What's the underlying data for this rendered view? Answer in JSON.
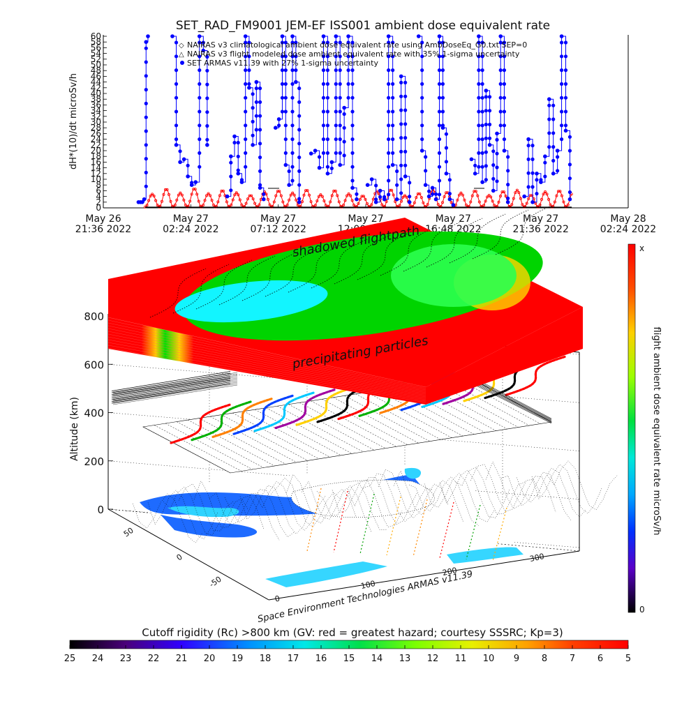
{
  "title": "SET_RAD_FM9001  JEM-EF ISS001 ambient dose equivalent rate",
  "chart_data": [
    {
      "type": "line",
      "ylabel": "dH*(10)/dt microSv/h",
      "xlabel": "",
      "ylim": [
        0,
        60
      ],
      "ytick_labels": [
        "0",
        "2",
        "4",
        "6",
        "8",
        "10",
        "12",
        "14",
        "16",
        "18",
        "20",
        "22",
        "24",
        "26",
        "28",
        "30",
        "32",
        "34",
        "36",
        "38",
        "40",
        "42",
        "44",
        "46",
        "48",
        "50",
        "52",
        "54",
        "56",
        "58",
        "60"
      ],
      "x_ticks": [
        {
          "date": "May 26",
          "time": "21:36 2022",
          "hours": 0
        },
        {
          "date": "May 27",
          "time": "02:24 2022",
          "hours": 4.8
        },
        {
          "date": "May 27",
          "time": "07:12 2022",
          "hours": 9.6
        },
        {
          "date": "May 27",
          "time": "12:00 2022",
          "hours": 14.4
        },
        {
          "date": "May 27",
          "time": "16:48 2022",
          "hours": 19.2
        },
        {
          "date": "May 27",
          "time": "21:36 2022",
          "hours": 24.0
        },
        {
          "date": "May 28",
          "time": "02:24 2022",
          "hours": 28.8
        }
      ],
      "xlim_hours": [
        0,
        28.8
      ],
      "legend": [
        "NAIRAS v3 climatological ambient dose equivalent rate using AmbDoseEq_G0.txt SEP=0",
        "NAIRAS v3 flight modeled dose ambient equivalent rate with 35% 1-sigma uncertainty",
        "SET ARMAS v11.39 with 27% 1-sigma uncertainty"
      ],
      "legend_placement": "top-center",
      "series": [
        {
          "name": "SET ARMAS v11.39 with 27% 1-sigma uncertainty",
          "color": "#0000ff",
          "segments": [
            {
              "x0": 1.93,
              "x1": 2.45,
              "values": [
                2,
                2,
                2,
                3,
                58,
                60
              ]
            },
            {
              "x0": 3.79,
              "x1": 5.7,
              "values": [
                60,
                22,
                16,
                17,
                11,
                8,
                9,
                60,
                55,
                22
              ]
            },
            {
              "x0": 6.8,
              "x1": 8.8,
              "values": [
                4,
                18,
                25,
                12,
                9,
                60,
                42,
                22,
                44,
                7,
                3
              ]
            },
            {
              "x0": 9.45,
              "x1": 10.75,
              "values": [
                28,
                31,
                60,
                15,
                8,
                60,
                44,
                2
              ]
            },
            {
              "x0": 11.4,
              "x1": 13.9,
              "values": [
                19,
                20,
                14,
                60,
                12,
                16,
                60,
                15,
                35,
                60,
                7,
                3
              ]
            },
            {
              "x0": 14.5,
              "x1": 16.8,
              "values": [
                8,
                10,
                2,
                6,
                3,
                60,
                15,
                3,
                46,
                11,
                2
              ]
            },
            {
              "x0": 17.3,
              "x1": 19.2,
              "values": [
                60,
                20,
                8,
                4,
                7,
                3,
                60,
                28,
                12,
                3,
                1
              ]
            },
            {
              "x0": 20.2,
              "x1": 22.2,
              "values": [
                17,
                12,
                60,
                9,
                41,
                22,
                6,
                26,
                60,
                20,
                2
              ]
            },
            {
              "x0": 23.1,
              "x1": 25.6,
              "values": [
                4,
                24,
                2,
                12,
                9,
                18,
                38,
                12,
                20,
                60,
                27,
                3
              ]
            }
          ]
        },
        {
          "name": "NAIRAS v3 climatological ambient dose equivalent rate using AmbDoseEq_G0.txt SEP=0",
          "color": "#ff0000",
          "start_hours": 2.3,
          "end_hours": 25.7,
          "period_hours": 0.77,
          "min_value": 0.3,
          "max_values": [
            4.8,
            6.6,
            5.2,
            6.8,
            5.0,
            6.1,
            5.3,
            4.4,
            5.6,
            6.0,
            5.2,
            6.3,
            4.6,
            6.1,
            4.9,
            4.2,
            5.8,
            6.4,
            4.3,
            5.1,
            6.3,
            5.5,
            5.2,
            6.0,
            4.4,
            5.8,
            6.2,
            4.5,
            5.6,
            6.0,
            5.6
          ]
        }
      ]
    },
    {
      "type": "heatmap",
      "ylabel": "Altitude (km)",
      "ytick_labels": [
        "0",
        "200",
        "400",
        "600",
        "800"
      ],
      "lat_tick_labels": [
        "-50",
        "0",
        "50"
      ],
      "lon_tick_labels": [
        "0",
        "100",
        "200",
        "300"
      ],
      "top_plane_labels": [
        "shadowed flightpath",
        "precipitating particles"
      ],
      "colorbar": {
        "label": "flight ambient dose equivalent rate microSv/h",
        "top_label": "x",
        "bottom_label": "0"
      },
      "credit": "Space Environment Technologies ARMAS v11.39"
    },
    {
      "type": "colorbar",
      "title": "Cutoff rigidity (Rc) >800 km (GV: red = greatest hazard; courtesy SSSRC; Kp=3)",
      "tick_labels": [
        "25",
        "24",
        "23",
        "22",
        "21",
        "20",
        "19",
        "18",
        "17",
        "16",
        "15",
        "14",
        "13",
        "12",
        "11",
        "10",
        "9",
        "8",
        "7",
        "6",
        "5"
      ]
    }
  ]
}
